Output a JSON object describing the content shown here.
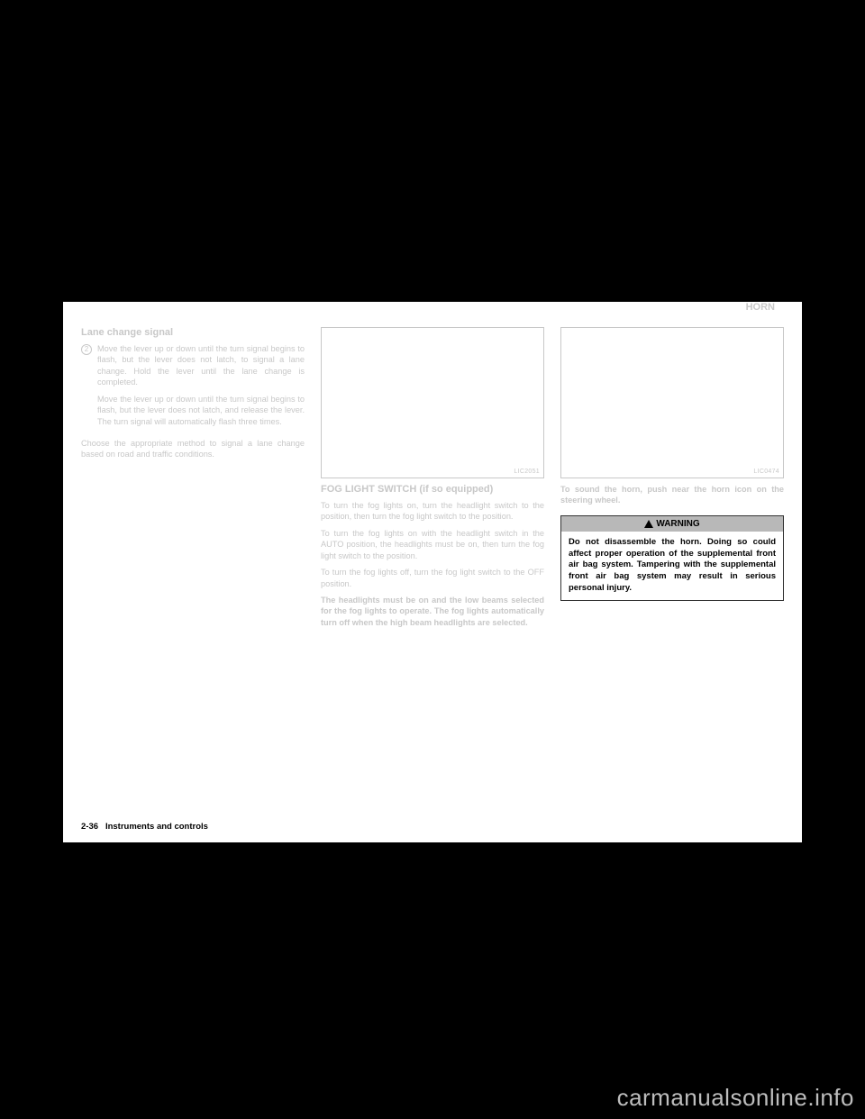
{
  "header": {
    "section_title": "HORN"
  },
  "col1": {
    "subhead": "Lane change signal",
    "item_num": "2",
    "item_text_1": "Move the lever up or down until the turn signal begins to flash, but the lever does not latch, to signal a lane change. Hold the lever until the lane change is completed.",
    "item_text_2": "Move the lever up or down until the turn signal begins to flash, but the lever does not latch, and release the lever. The turn signal will automatically flash three times.",
    "closing": "Choose the appropriate method to signal a lane change based on road and traffic conditions."
  },
  "col2": {
    "fig_code": "LIC2051",
    "caption": "FOG LIGHT SWITCH (if so equipped)",
    "p1": "To turn the fog lights on, turn the headlight switch to the        position, then turn the fog light switch to the        position.",
    "p2": "To turn the fog lights on with the headlight switch in the AUTO position, the headlights must be on, then turn the fog light switch to the        position.",
    "p3": "To turn the fog lights off, turn the fog light switch to the OFF position.",
    "p4": "The headlights must be on and the low beams selected for the fog lights to operate. The fog lights automatically turn off when the high beam headlights are selected."
  },
  "col3": {
    "fig_code": "LIC0474",
    "lead": "To sound the horn, push near the horn icon on the steering wheel.",
    "warning_label": "WARNING",
    "warning_text": "Do not disassemble the horn. Doing so could affect proper operation of the supplemental front air bag system. Tampering with the supplemental front air bag system may result in serious personal injury."
  },
  "footer": {
    "page_num": "2-36",
    "section": "Instruments and controls"
  },
  "watermark": "carmanualsonline.info",
  "colors": {
    "washed": "#c8c8c8",
    "black": "#000000",
    "warn_bg": "#b8b8b8"
  }
}
